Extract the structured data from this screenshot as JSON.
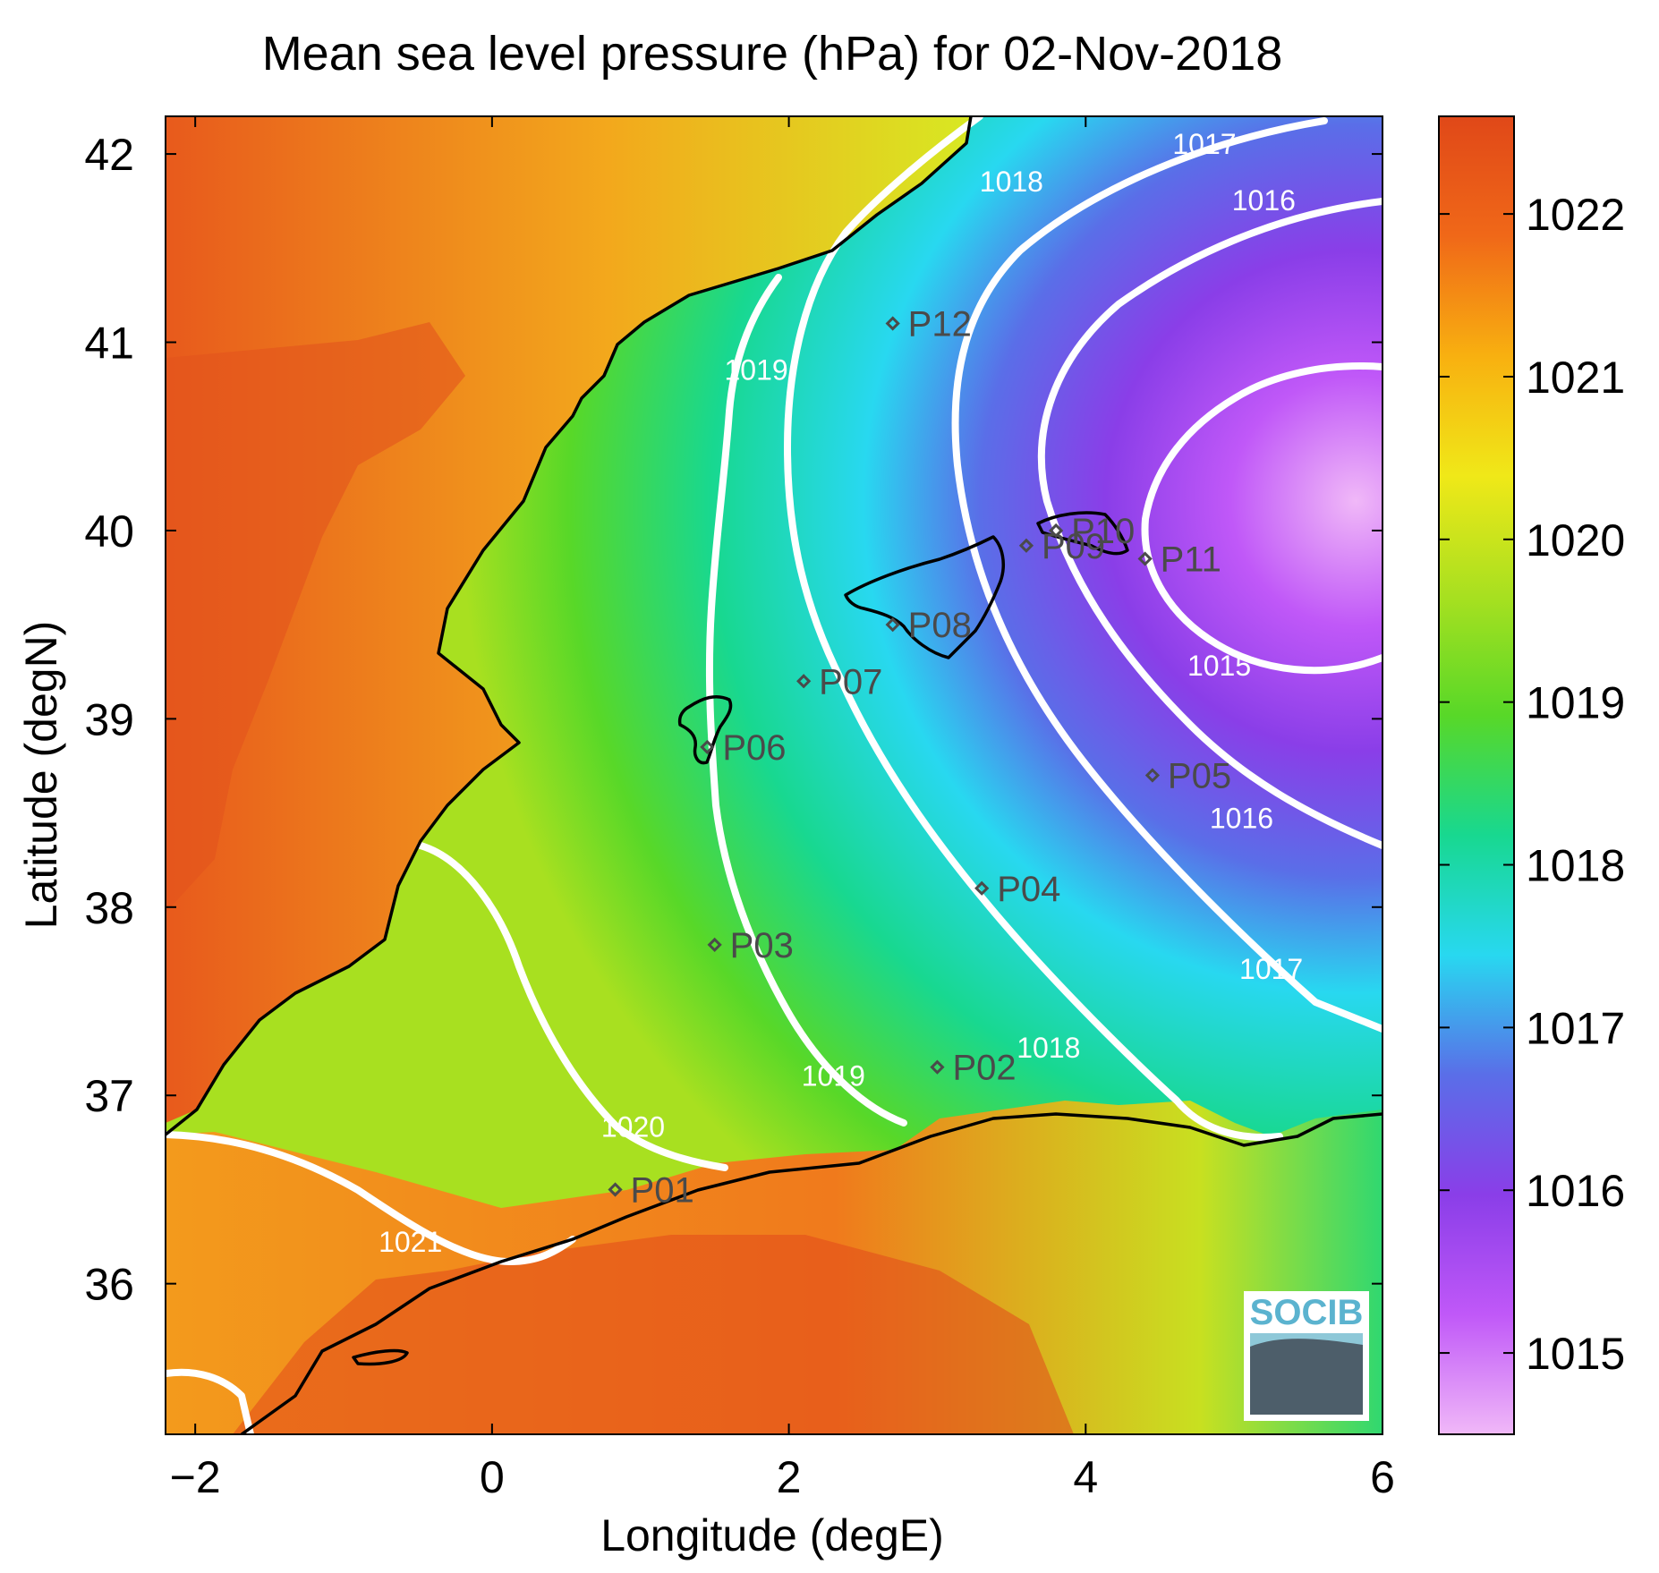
{
  "title": "Mean sea level pressure (hPa) for 02-Nov-2018",
  "xlabel": "Longitude (degE)",
  "ylabel": "Latitude (degN)",
  "logo": "SOCIB",
  "chart_data": {
    "type": "heatmap",
    "xlim": [
      -2.2,
      6.0
    ],
    "ylim": [
      35.2,
      42.2
    ],
    "xticks": [
      -2,
      0,
      2,
      4,
      6
    ],
    "yticks": [
      36,
      37,
      38,
      39,
      40,
      41,
      42
    ],
    "colorbar": {
      "range": [
        1014.5,
        1022.6
      ],
      "ticks": [
        1015,
        1016,
        1017,
        1018,
        1019,
        1020,
        1021,
        1022
      ],
      "colors": [
        "#f0b8f8",
        "#c058f8",
        "#8a3ee8",
        "#5a6ee8",
        "#28d8f0",
        "#18d890",
        "#58d828",
        "#a8e020",
        "#f0e818",
        "#f8b010",
        "#f06818",
        "#e04818"
      ]
    },
    "contours": [
      {
        "level": 1015,
        "label": "1015",
        "label_pos": [
          4.9,
          39.23
        ]
      },
      {
        "level": 1016,
        "label": "1016",
        "label_pos": [
          5.2,
          41.7
        ]
      },
      {
        "level": 1016,
        "label": "1016",
        "label_pos": [
          5.05,
          38.42
        ]
      },
      {
        "level": 1017,
        "label": "1017",
        "label_pos": [
          4.8,
          42.0
        ]
      },
      {
        "level": 1017,
        "label": "1017",
        "label_pos": [
          5.25,
          37.62
        ]
      },
      {
        "level": 1018,
        "label": "1018",
        "label_pos": [
          3.5,
          41.8
        ]
      },
      {
        "level": 1018,
        "label": "1018",
        "label_pos": [
          3.75,
          37.2
        ]
      },
      {
        "level": 1019,
        "label": "1019",
        "label_pos": [
          1.78,
          40.8
        ]
      },
      {
        "level": 1019,
        "label": "1019",
        "label_pos": [
          2.3,
          37.05
        ]
      },
      {
        "level": 1020,
        "label": "1020",
        "label_pos": [
          0.95,
          36.78
        ]
      },
      {
        "level": 1021,
        "label": "1021",
        "label_pos": [
          -0.55,
          36.17
        ]
      }
    ],
    "points": [
      {
        "name": "P01",
        "lon": 0.83,
        "lat": 36.5
      },
      {
        "name": "P02",
        "lon": 3.0,
        "lat": 37.15
      },
      {
        "name": "P03",
        "lon": 1.5,
        "lat": 37.8
      },
      {
        "name": "P04",
        "lon": 3.3,
        "lat": 38.1
      },
      {
        "name": "P05",
        "lon": 4.45,
        "lat": 38.7
      },
      {
        "name": "P06",
        "lon": 1.45,
        "lat": 38.85
      },
      {
        "name": "P07",
        "lon": 2.1,
        "lat": 39.2
      },
      {
        "name": "P08",
        "lon": 2.7,
        "lat": 39.5
      },
      {
        "name": "P09",
        "lon": 3.6,
        "lat": 39.92
      },
      {
        "name": "P10",
        "lon": 3.8,
        "lat": 40.0
      },
      {
        "name": "P11",
        "lon": 4.4,
        "lat": 39.85
      },
      {
        "name": "P12",
        "lon": 2.7,
        "lat": 41.1
      }
    ]
  }
}
